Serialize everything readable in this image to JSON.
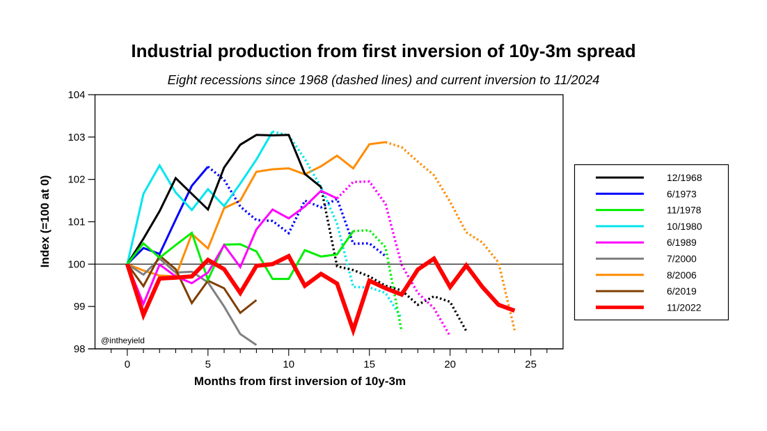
{
  "chart_data": {
    "type": "line",
    "title": "Industrial production from first inversion of 10y-3m spread",
    "subtitle": "Eight recessions since 1968 (dashed lines) and current inversion to 11/2024",
    "xlabel": "Months from first inversion of 10y-3m",
    "ylabel": "Index (=100 at 0)",
    "xlim": [
      -2,
      27
    ],
    "ylim": [
      98,
      104
    ],
    "xticks": [
      0,
      5,
      10,
      15,
      20,
      25
    ],
    "yticks": [
      98,
      99,
      100,
      101,
      102,
      103,
      104
    ],
    "reference_line": 100,
    "legend_position": "right",
    "watermark": "@intheyield",
    "series": [
      {
        "name": "12/1968",
        "color": "#000000",
        "solid_until": 12,
        "x": [
          0,
          1,
          2,
          3,
          4,
          5,
          6,
          7,
          8,
          9,
          10,
          11,
          12,
          13,
          14,
          15,
          16,
          17,
          18,
          19,
          20,
          21
        ],
        "values": [
          100,
          100.6,
          101.25,
          102.03,
          101.66,
          101.29,
          102.28,
          102.82,
          103.05,
          103.04,
          103.05,
          102.13,
          101.82,
          99.95,
          99.86,
          99.71,
          99.49,
          99.38,
          99.04,
          99.24,
          99.11,
          98.42
        ]
      },
      {
        "name": "6/1973",
        "color": "#0000ff",
        "solid_until": 5,
        "x": [
          0,
          1,
          2,
          3,
          4,
          5,
          6,
          7,
          8,
          9,
          10,
          11,
          12,
          13,
          14,
          15,
          16
        ],
        "values": [
          100,
          100.38,
          100.24,
          101.05,
          101.85,
          102.3,
          101.99,
          101.36,
          101.04,
          101.02,
          100.73,
          101.5,
          101.34,
          101.54,
          100.48,
          100.49,
          100.19
        ]
      },
      {
        "name": "11/1978",
        "color": "#00ee00",
        "solid_until": 14,
        "x": [
          0,
          1,
          2,
          3,
          4,
          5,
          6,
          7,
          8,
          9,
          10,
          11,
          12,
          13,
          14,
          15,
          16,
          17
        ],
        "values": [
          100,
          100.49,
          100.15,
          100.45,
          100.74,
          99.63,
          100.46,
          100.47,
          100.3,
          99.65,
          99.65,
          100.33,
          100.18,
          100.23,
          100.78,
          100.8,
          100.4,
          98.41
        ]
      },
      {
        "name": "10/1980",
        "color": "#00e5ee",
        "solid_until": 9,
        "x": [
          0,
          1,
          2,
          3,
          4,
          5,
          6,
          7,
          8,
          9,
          10,
          11,
          12,
          13,
          14,
          15,
          16,
          17
        ],
        "values": [
          100,
          101.66,
          102.33,
          101.69,
          101.28,
          101.77,
          101.37,
          101.9,
          102.47,
          103.13,
          103.04,
          102.48,
          101.82,
          100.95,
          99.46,
          99.45,
          99.32,
          98.72
        ]
      },
      {
        "name": "6/1989",
        "color": "#ff00ff",
        "solid_until": 13,
        "x": [
          0,
          1,
          2,
          3,
          4,
          5,
          6,
          7,
          8,
          9,
          10,
          11,
          12,
          13,
          14,
          15,
          16,
          17,
          18,
          19,
          20
        ],
        "values": [
          100,
          99.06,
          99.99,
          99.71,
          99.55,
          99.8,
          100.45,
          99.93,
          100.82,
          101.29,
          101.08,
          101.36,
          101.73,
          101.55,
          101.94,
          101.95,
          101.42,
          99.98,
          99.32,
          98.96,
          98.3
        ]
      },
      {
        "name": "7/2000",
        "color": "#808080",
        "solid_until": 8,
        "x": [
          0,
          1,
          2,
          3,
          4,
          5,
          6,
          7,
          8
        ],
        "values": [
          100,
          99.75,
          100.13,
          99.8,
          99.82,
          99.57,
          99.0,
          98.35,
          98.09
        ]
      },
      {
        "name": "8/2006",
        "color": "#ff8c00",
        "solid_until": 16,
        "x": [
          0,
          1,
          2,
          3,
          4,
          5,
          6,
          7,
          8,
          9,
          10,
          11,
          12,
          13,
          14,
          15,
          16,
          17,
          18,
          19,
          20,
          21,
          22,
          23,
          24
        ],
        "values": [
          100,
          99.85,
          99.73,
          99.71,
          100.71,
          100.37,
          101.32,
          101.5,
          102.18,
          102.24,
          102.26,
          102.12,
          102.31,
          102.56,
          102.26,
          102.83,
          102.88,
          102.76,
          102.42,
          102.1,
          101.47,
          100.75,
          100.51,
          100.04,
          98.44
        ]
      },
      {
        "name": "6/2019",
        "color": "#7f3f00",
        "solid_until": 8,
        "x": [
          0,
          1,
          2,
          3,
          4,
          5,
          6,
          7,
          8
        ],
        "values": [
          100,
          99.48,
          100.2,
          99.88,
          99.08,
          99.61,
          99.43,
          98.85,
          99.15
        ]
      },
      {
        "name": "11/2022",
        "color": "#ff0000",
        "solid_until": 24,
        "emphasis": true,
        "x": [
          0,
          1,
          2,
          3,
          4,
          5,
          6,
          7,
          8,
          9,
          10,
          11,
          12,
          13,
          14,
          15,
          16,
          17,
          18,
          19,
          20,
          21,
          22,
          23,
          24
        ],
        "values": [
          100,
          98.8,
          99.66,
          99.68,
          99.71,
          100.1,
          99.88,
          99.32,
          99.96,
          100.0,
          100.19,
          99.49,
          99.77,
          99.54,
          98.44,
          99.61,
          99.43,
          99.28,
          99.87,
          100.13,
          99.46,
          99.97,
          99.46,
          99.04,
          98.9
        ]
      }
    ]
  }
}
